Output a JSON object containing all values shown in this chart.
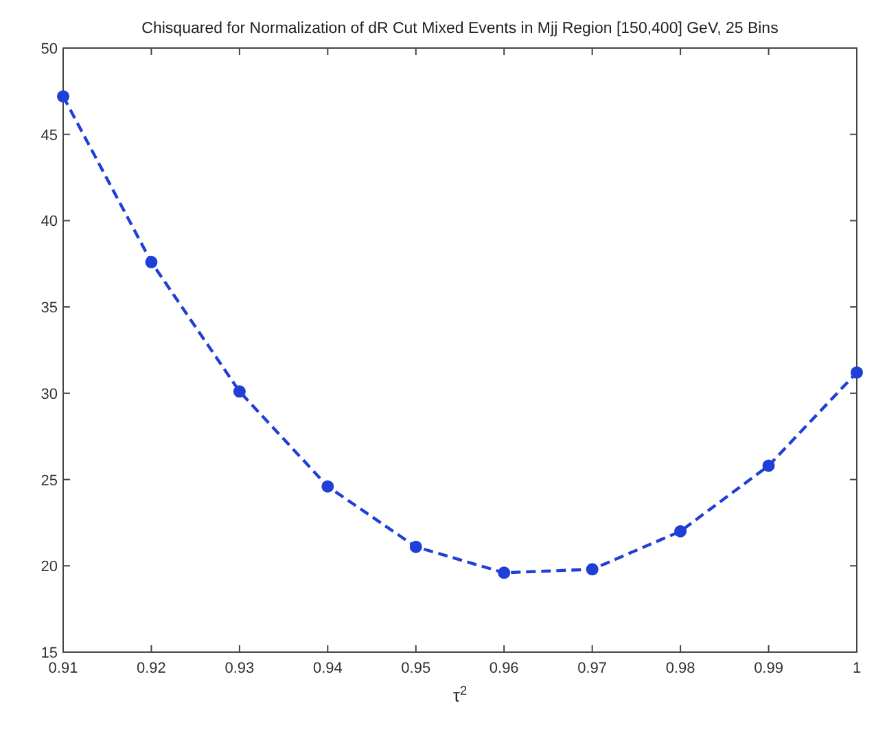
{
  "chart_data": {
    "type": "line",
    "title": "Chisquared for Normalization of dR Cut Mixed Events in Mjj Region [150,400] GeV, 25 Bins",
    "xlabel": "τ$^{2}$",
    "x": [
      0.91,
      0.92,
      0.93,
      0.94,
      0.95,
      0.96,
      0.97,
      0.98,
      0.99,
      1.0
    ],
    "series": [
      {
        "color": "#1f3fd6",
        "values": [
          47.2,
          37.6,
          30.1,
          24.6,
          21.1,
          19.6,
          19.8,
          22.0,
          25.8,
          31.2
        ]
      }
    ],
    "xlim": [
      0.91,
      1.0
    ],
    "xticks": [
      0.91,
      0.92,
      0.93,
      0.94,
      0.95,
      0.96,
      0.97,
      0.98,
      0.99,
      1
    ],
    "ylim": [
      15,
      50
    ],
    "yticks": [
      15,
      20,
      25,
      30,
      35,
      40,
      45,
      50
    ],
    "grid": false,
    "marker": "circle",
    "line_style": "dashed"
  }
}
